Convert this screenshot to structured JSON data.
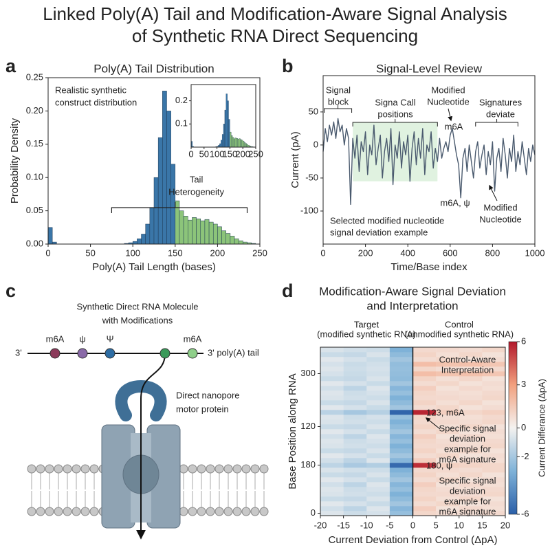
{
  "title": [
    "Linked Poly(A) Tail and Modification-Aware Signal Analysis",
    "of Synthetic RNA Direct Sequencing"
  ],
  "panel_labels": [
    "a",
    "b",
    "c",
    "d"
  ],
  "chart_data": [
    {
      "type": "histogram",
      "title": "Poly(A) Tail Distribution",
      "x_label": "Poly(A) Tail Length (bases)",
      "y_label": "Probability Density",
      "bins": [
        0,
        5,
        10,
        15,
        20,
        25,
        30,
        35,
        40,
        45,
        50,
        55,
        60,
        65,
        70,
        75,
        80,
        85,
        90,
        95,
        100,
        105,
        110,
        115,
        120,
        125,
        130,
        135,
        140,
        145,
        150,
        155,
        160,
        165,
        170,
        175,
        180,
        185,
        190,
        195,
        200,
        205,
        210,
        215,
        220,
        225,
        230,
        235,
        240,
        245,
        250
      ],
      "values": [
        0.025,
        0.003,
        0,
        0,
        0,
        0,
        0,
        0,
        0,
        0,
        0,
        0,
        0,
        0,
        0,
        0,
        0,
        0,
        0.001,
        0.002,
        0.004,
        0.008,
        0.015,
        0.03,
        0.055,
        0.1,
        0.16,
        0.23,
        0.2,
        0.12,
        0.065,
        0.05,
        0.042,
        0.036,
        0.04,
        0.038,
        0.035,
        0.037,
        0.033,
        0.03,
        0.026,
        0.02,
        0.016,
        0.012,
        0.008,
        0.005,
        0.003,
        0.002,
        0.001,
        0
      ],
      "colors": [
        "#3a76a8",
        "#3a76a8",
        "#3a76a8",
        "#3a76a8",
        "#3a76a8",
        "#3a76a8",
        "#3a76a8",
        "#3a76a8",
        "#3a76a8",
        "#3a76a8",
        "#3a76a8",
        "#3a76a8",
        "#3a76a8",
        "#3a76a8",
        "#3a76a8",
        "#3a76a8",
        "#3a76a8",
        "#3a76a8",
        "#3a76a8",
        "#3a76a8",
        "#3a76a8",
        "#3a76a8",
        "#3a76a8",
        "#3a76a8",
        "#3a76a8",
        "#3a76a8",
        "#3a76a8",
        "#3a76a8",
        "#3a76a8",
        "#3a76a8",
        "#8cc47a",
        "#8cc47a",
        "#8cc47a",
        "#8cc47a",
        "#8cc47a",
        "#8cc47a",
        "#8cc47a",
        "#8cc47a",
        "#8cc47a",
        "#8cc47a",
        "#8cc47a",
        "#8cc47a",
        "#8cc47a",
        "#8cc47a",
        "#8cc47a",
        "#8cc47a",
        "#8cc47a",
        "#8cc47a",
        "#8cc47a",
        "#8cc47a"
      ],
      "edgecolor": "#1f3a55",
      "xlim": [
        0,
        250
      ],
      "ylim": [
        0,
        0.25
      ],
      "xticks": [
        0,
        50,
        100,
        150,
        200,
        250
      ],
      "yticks": [
        {
          "value": 0,
          "label": "0.00"
        },
        {
          "value": 0.05,
          "label": "0.05"
        },
        {
          "value": 0.1,
          "label": "0.10"
        },
        {
          "value": 0.15,
          "label": "0.15"
        },
        {
          "value": 0.2,
          "label": "0.20"
        },
        {
          "value": 0.25,
          "label": "0.25"
        }
      ],
      "annotations": [
        {
          "text": [
            "Realistic synthetic",
            "construct distribution"
          ]
        },
        {
          "text": [
            "Tail",
            "Heterogeneity"
          ]
        }
      ],
      "inset": {
        "xlim": [
          0,
          250
        ],
        "ylim": [
          0,
          0.27
        ],
        "xticks": [
          0,
          50,
          100,
          150,
          200,
          250
        ],
        "yticks": [
          0.1,
          0.2
        ]
      }
    },
    {
      "type": "line",
      "title": "Signal-Level Review",
      "x_label": "Time/Base index",
      "y_label": "Current (pA)",
      "x": [
        0,
        10,
        20,
        30,
        40,
        50,
        60,
        70,
        80,
        90,
        100,
        110,
        120,
        130,
        140,
        150,
        160,
        170,
        180,
        190,
        200,
        210,
        220,
        230,
        240,
        250,
        260,
        270,
        280,
        290,
        300,
        310,
        320,
        330,
        340,
        350,
        360,
        370,
        380,
        390,
        400,
        410,
        420,
        430,
        440,
        450,
        460,
        470,
        480,
        490,
        500,
        510,
        520,
        530,
        540,
        550,
        560,
        570,
        580,
        590,
        600,
        610,
        620,
        630,
        640,
        650,
        660,
        670,
        680,
        690,
        700,
        710,
        720,
        730,
        740,
        750,
        760,
        770,
        780,
        790,
        800,
        810,
        820,
        830,
        840,
        850,
        860,
        870,
        880,
        890,
        900,
        910,
        920,
        930,
        940,
        950,
        960,
        970,
        980,
        990,
        1000
      ],
      "values": [
        -10,
        25,
        5,
        30,
        15,
        35,
        10,
        40,
        20,
        30,
        0,
        25,
        10,
        -90,
        10,
        -20,
        15,
        -40,
        5,
        -10,
        20,
        -45,
        0,
        -15,
        30,
        -30,
        -5,
        15,
        -50,
        -10,
        10,
        -25,
        25,
        -60,
        0,
        -20,
        20,
        -35,
        5,
        -15,
        15,
        -55,
        -5,
        20,
        -30,
        10,
        -20,
        25,
        -45,
        0,
        -10,
        20,
        -35,
        -5,
        -25,
        10,
        -20,
        -5,
        5,
        -10,
        15,
        25,
        5,
        -15,
        -30,
        -80,
        -20,
        -5,
        -40,
        0,
        -25,
        -50,
        -10,
        5,
        -35,
        -15,
        0,
        -45,
        -10,
        -30,
        5,
        -70,
        -20,
        -5,
        -40,
        10,
        -15,
        -50,
        -5,
        -25,
        15,
        -40,
        -10,
        -30,
        5,
        -20,
        -45,
        -5,
        -25,
        0,
        -15
      ],
      "color": "#4a5a6e",
      "xlim": [
        0,
        1000
      ],
      "ylim": [
        -150,
        105
      ],
      "xticks": [
        0,
        200,
        400,
        600,
        800,
        1000
      ],
      "yticks": [
        -100,
        -50,
        0,
        50
      ],
      "highlight": {
        "x": [
          140,
          540
        ],
        "y": [
          -55,
          35
        ],
        "color": "#d8efd8"
      },
      "annotations": [
        {
          "text": [
            "Signal",
            "block"
          ]
        },
        {
          "text": [
            "Signa Call",
            "positions"
          ]
        },
        {
          "text": [
            "Modified",
            "Nucleotide"
          ]
        },
        {
          "text": [
            "m6A"
          ],
          "color": "#7a2a55"
        },
        {
          "text": [
            "Signatures",
            "deviate"
          ]
        },
        {
          "text": [
            "m6A, ψ"
          ],
          "color": "#2e8b6a"
        },
        {
          "text": [
            "Modified",
            "Nucleotide"
          ]
        },
        {
          "text": [
            "Selected modified nucleotide",
            "signal deviation example"
          ]
        }
      ]
    },
    {
      "type": "heatmap",
      "title": [
        "Modification-Aware Signal Deviation",
        "and Interpretation"
      ],
      "x_label": "Current Deviation from Control (ΔpA)",
      "y_label": "Base Position along RNA",
      "bins": [
        -20,
        -15,
        -10,
        -5,
        0,
        5,
        10,
        15,
        20
      ],
      "categories": [
        "0",
        null,
        null,
        null,
        null,
        null,
        null,
        null,
        null,
        null,
        "180",
        null,
        null,
        null,
        null,
        null,
        null,
        null,
        "120",
        null,
        null,
        null,
        null,
        null,
        null,
        null,
        null,
        null,
        null,
        "300",
        null,
        null,
        null,
        null,
        null
      ],
      "values": [
        [
          -0.6,
          -1.0,
          -0.8,
          -2.4,
          1.0,
          0.8,
          0.7,
          0.9
        ],
        [
          -0.9,
          -1.4,
          -0.6,
          -2.8,
          1.3,
          0.6,
          0.9,
          0.7
        ],
        [
          -0.5,
          -0.8,
          -1.1,
          -2.1,
          0.8,
          1.0,
          0.6,
          0.8
        ],
        [
          -1.1,
          -1.2,
          -0.7,
          -2.6,
          1.1,
          0.7,
          1.0,
          0.6
        ],
        [
          -0.7,
          -0.9,
          -1.0,
          -3.0,
          0.9,
          0.9,
          0.8,
          1.0
        ],
        [
          -0.6,
          -1.0,
          -0.8,
          -2.4,
          1.0,
          0.8,
          0.7,
          0.9
        ],
        [
          -0.9,
          -1.4,
          -0.6,
          -2.8,
          1.3,
          0.6,
          0.9,
          0.7
        ],
        [
          -0.5,
          -0.8,
          -1.1,
          -2.1,
          0.8,
          1.0,
          0.6,
          0.8
        ],
        [
          -1.1,
          -1.2,
          -0.7,
          -2.6,
          1.1,
          0.7,
          1.0,
          0.6
        ],
        [
          -0.7,
          -0.9,
          -1.0,
          -3.0,
          0.9,
          0.9,
          0.8,
          1.0
        ],
        [
          -1.4,
          -1.9,
          -1.7,
          -5.6,
          5.5,
          1.2,
          1.1,
          1.0
        ],
        [
          -0.9,
          -1.4,
          -0.6,
          -2.8,
          1.3,
          0.6,
          0.9,
          0.7
        ],
        [
          -0.5,
          -0.8,
          -1.1,
          -2.1,
          0.8,
          1.0,
          0.6,
          0.8
        ],
        [
          -1.1,
          -1.2,
          -0.7,
          -2.6,
          1.1,
          0.7,
          1.0,
          0.6
        ],
        [
          -0.7,
          -0.9,
          -1.0,
          -3.0,
          0.9,
          0.9,
          0.8,
          1.0
        ],
        [
          -0.6,
          -1.0,
          -0.8,
          -2.4,
          1.0,
          0.8,
          0.7,
          0.9
        ],
        [
          -0.9,
          -1.4,
          -0.6,
          -2.8,
          1.3,
          0.6,
          0.9,
          0.7
        ],
        [
          -0.5,
          -0.8,
          -1.1,
          -2.1,
          0.8,
          1.0,
          0.6,
          0.8
        ],
        [
          -1.1,
          -1.2,
          -0.7,
          -2.6,
          1.1,
          0.7,
          1.0,
          0.6
        ],
        [
          -0.7,
          -0.9,
          -1.0,
          -3.0,
          0.9,
          0.9,
          0.8,
          1.0
        ],
        [
          -0.6,
          -1.0,
          -0.8,
          -2.4,
          1.0,
          0.8,
          0.7,
          0.9
        ],
        [
          -1.5,
          -2.0,
          -1.6,
          -5.8,
          5.7,
          1.3,
          1.0,
          1.2
        ],
        [
          -0.5,
          -0.8,
          -1.1,
          -2.1,
          0.8,
          1.0,
          0.6,
          0.8
        ],
        [
          -1.1,
          -1.2,
          -0.7,
          -2.6,
          1.1,
          0.7,
          1.0,
          0.6
        ],
        [
          -0.7,
          -0.9,
          -1.0,
          -3.0,
          0.9,
          0.9,
          0.8,
          1.0
        ],
        [
          -0.6,
          -1.0,
          -0.8,
          -2.4,
          1.0,
          0.8,
          0.7,
          0.9
        ],
        [
          -0.9,
          -1.4,
          -0.6,
          -2.8,
          1.3,
          0.6,
          0.9,
          0.7
        ],
        [
          -0.5,
          -0.8,
          -1.1,
          -2.1,
          0.8,
          1.0,
          0.6,
          0.8
        ],
        [
          -1.1,
          -1.2,
          -0.7,
          -2.6,
          1.1,
          0.7,
          1.0,
          0.6
        ],
        [
          -0.8,
          -1.1,
          -0.9,
          -2.5,
          1.9,
          1.7,
          1.8,
          1.6
        ],
        [
          -0.6,
          -1.0,
          -0.8,
          -2.4,
          1.0,
          0.8,
          0.7,
          0.9
        ],
        [
          -0.8,
          -1.1,
          -0.9,
          -2.5,
          1.9,
          1.7,
          1.8,
          1.6
        ],
        [
          -0.5,
          -0.8,
          -1.1,
          -2.1,
          0.8,
          1.0,
          0.6,
          0.8
        ],
        [
          -1.1,
          -1.2,
          -0.7,
          -2.6,
          1.1,
          0.7,
          1.0,
          0.6
        ],
        [
          -0.7,
          -0.9,
          -1.0,
          -3.0,
          0.9,
          0.9,
          0.8,
          1.0
        ]
      ],
      "xlim": [
        -20,
        20
      ],
      "xticks": [
        -20,
        -15,
        -10,
        -5,
        0,
        5,
        10,
        15,
        20
      ],
      "colormap": [
        "#2b5fa8",
        "#7fb2d8",
        "#f4f2f0",
        "#f2a07e",
        "#b2182b"
      ],
      "clim": [
        -6,
        6
      ],
      "colorbar_ticks": [
        6,
        3,
        0,
        -2,
        -6
      ],
      "colorbar_label": "Current Differance (ΔpA)",
      "column_headers": [
        {
          "text": [
            "Target",
            "(modified synthetic RNA)"
          ]
        },
        {
          "text": [
            "Control",
            "(unmodified synthetic RNA)"
          ]
        }
      ],
      "annotations": [
        {
          "text": [
            "Control-Aware",
            "Interpretation"
          ]
        },
        {
          "text": [
            "123, m6A"
          ]
        },
        {
          "text": [
            "Specific signal",
            "deviation",
            "example for",
            "m6A signature"
          ]
        },
        {
          "text": [
            "180, ψ"
          ]
        },
        {
          "text": [
            "Specific signal",
            "deviation",
            "example for",
            "m6A signature"
          ]
        }
      ]
    }
  ],
  "diagram": {
    "title": [
      "Synthetic Direct RNA Molecule",
      "with Modifications"
    ],
    "strand_left": "3'",
    "strand_right": "3' poly(A) tail",
    "modifications": [
      {
        "label": "m6A",
        "color": "#8b3a5a",
        "label_color": "#7a2a55"
      },
      {
        "label": "ψ",
        "color": "#8a6aa8",
        "label_color": "#6a4a8a"
      },
      {
        "label": "Ψ",
        "color": "#2e6da4",
        "label_color": "#2a7a8a"
      },
      {
        "label": null,
        "color": "#3b9a5a",
        "label_color": "#3b9a5a"
      },
      {
        "label": "m6A",
        "color": "#8fcf8a",
        "label_color": "#3b9a5a"
      }
    ],
    "protein_label": [
      "Direct nanopore",
      "motor protein"
    ]
  }
}
